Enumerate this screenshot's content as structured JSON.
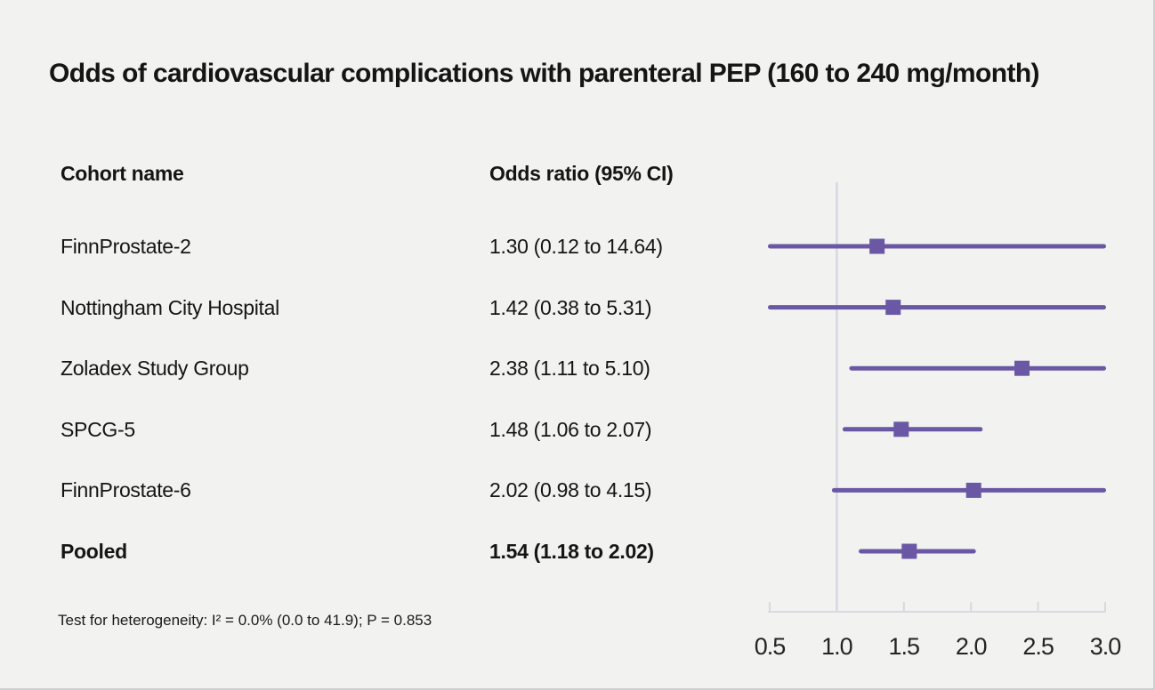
{
  "chart_data": {
    "type": "forest",
    "title": "Odds of cardiovascular complications with parenteral PEP (160 to 240 mg/month)",
    "columns": {
      "cohort": "Cohort name",
      "odds_ratio": "Odds ratio (95% CI)"
    },
    "rows": [
      {
        "label": "FinnProstate-2",
        "or_text": "1.30 (0.12 to 14.64)",
        "or": 1.3,
        "ci_low": 0.12,
        "ci_high": 14.64,
        "bold": false
      },
      {
        "label": "Nottingham City Hospital",
        "or_text": "1.42 (0.38 to 5.31)",
        "or": 1.42,
        "ci_low": 0.38,
        "ci_high": 5.31,
        "bold": false
      },
      {
        "label": "Zoladex Study Group",
        "or_text": "2.38 (1.11 to 5.10)",
        "or": 2.38,
        "ci_low": 1.11,
        "ci_high": 5.1,
        "bold": false
      },
      {
        "label": "SPCG-5",
        "or_text": "1.48 (1.06 to 2.07)",
        "or": 1.48,
        "ci_low": 1.06,
        "ci_high": 2.07,
        "bold": false
      },
      {
        "label": "FinnProstate-6",
        "or_text": "2.02 (0.98 to 4.15)",
        "or": 2.02,
        "ci_low": 0.98,
        "ci_high": 4.15,
        "bold": false
      },
      {
        "label": "Pooled",
        "or_text": "1.54 (1.18 to 2.02)",
        "or": 1.54,
        "ci_low": 1.18,
        "ci_high": 2.02,
        "bold": true
      }
    ],
    "x_axis": {
      "min": 0.5,
      "max": 3.0,
      "tick_values": [
        0.5,
        1.0,
        1.5,
        2.0,
        2.5,
        3.0
      ],
      "tick_labels": [
        "0.5",
        "1.0",
        "1.5",
        "2.0",
        "2.5",
        "3.0"
      ],
      "reference_value": 1.0
    },
    "footnote": "Test for heterogeneity: I² = 0.0% (0.0 to 41.9); P = 0.853",
    "colors": {
      "marker": "#6a58a5",
      "reference_line": "#d5d9e2",
      "axis": "#d6d9e0",
      "background": "#f2f2f1",
      "text": "#151515"
    }
  }
}
